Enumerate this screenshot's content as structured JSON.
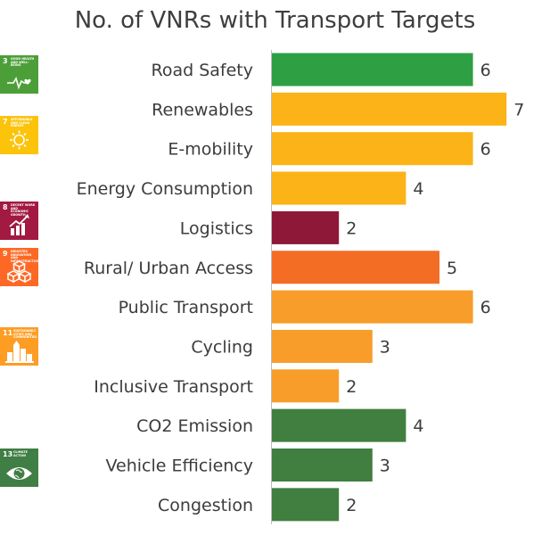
{
  "chart_data": {
    "type": "bar",
    "orientation": "horizontal",
    "title": "No. of VNRs with Transport Targets",
    "categories": [
      "Road Safety",
      "Renewables",
      "E-mobility",
      "Energy Consumption",
      "Logistics",
      "Rural/ Urban Access",
      "Public Transport",
      "Cycling",
      "Inclusive Transport",
      "CO2 Emission",
      "Vehicle Efficiency",
      "Congestion"
    ],
    "values": [
      6,
      7,
      6,
      4,
      2,
      5,
      6,
      3,
      2,
      4,
      3,
      2
    ],
    "bar_colors": [
      "#2ea043",
      "#fbb317",
      "#fbb317",
      "#fbb317",
      "#8e1838",
      "#f36d25",
      "#f89d2a",
      "#f89d2a",
      "#f89d2a",
      "#407f3f",
      "#407f3f",
      "#407f3f"
    ],
    "xlim": [
      0,
      7
    ],
    "grid": false,
    "data_labels": true
  },
  "sdg_icons": [
    {
      "number": "3",
      "text": "GOOD HEALTH AND WELL-BEING",
      "color": "#4c9f38",
      "icon": "heartbeat-icon"
    },
    {
      "number": "7",
      "text": "AFFORDABLE AND CLEAN ENERGY",
      "color": "#fcc30b",
      "icon": "sun-icon"
    },
    {
      "number": "8",
      "text": "DECENT WORK AND ECONOMIC GROWTH",
      "color": "#a21942",
      "icon": "growth-chart-icon"
    },
    {
      "number": "9",
      "text": "INDUSTRY, INNOVATION AND INFRASTRUCTURE",
      "color": "#fd6925",
      "icon": "cubes-icon"
    },
    {
      "number": "11",
      "text": "SUSTAINABLE CITIES AND COMMUNITIES",
      "color": "#fd9d24",
      "icon": "city-icon"
    },
    {
      "number": "13",
      "text": "CLIMATE ACTION",
      "color": "#3f7e44",
      "icon": "eye-globe-icon"
    }
  ]
}
